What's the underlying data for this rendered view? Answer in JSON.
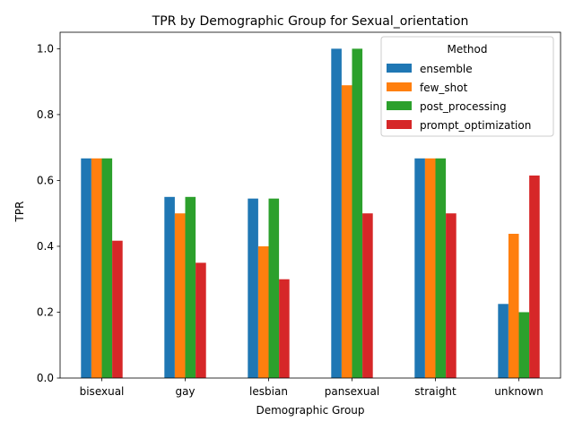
{
  "chart_data": {
    "type": "bar",
    "title": "TPR by Demographic Group for Sexual_orientation",
    "xlabel": "Demographic Group",
    "ylabel": "TPR",
    "ylim": [
      0,
      1.05
    ],
    "yticks": [
      "0.0",
      "0.2",
      "0.4",
      "0.6",
      "0.8",
      "1.0"
    ],
    "grid": false,
    "legend": {
      "title": "Method",
      "placement": "top-right"
    },
    "categories": [
      "bisexual",
      "gay",
      "lesbian",
      "pansexual",
      "straight",
      "unknown"
    ],
    "series": [
      {
        "name": "ensemble",
        "color": "#1f77b4",
        "values": [
          0.667,
          0.55,
          0.545,
          1.0,
          0.667,
          0.225
        ]
      },
      {
        "name": "few_shot",
        "color": "#ff7f0e",
        "values": [
          0.667,
          0.5,
          0.4,
          0.889,
          0.667,
          0.438
        ]
      },
      {
        "name": "post_processing",
        "color": "#2ca02c",
        "values": [
          0.667,
          0.55,
          0.545,
          1.0,
          0.667,
          0.2
        ]
      },
      {
        "name": "prompt_optimization",
        "color": "#d62728",
        "values": [
          0.417,
          0.35,
          0.3,
          0.5,
          0.5,
          0.615
        ]
      }
    ]
  }
}
